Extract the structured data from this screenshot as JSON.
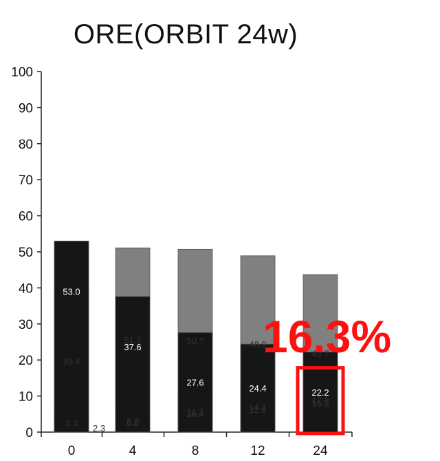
{
  "chart_data": {
    "type": "bar",
    "stacked": true,
    "title": "ORE(ORBIT 24w)",
    "xlabel": "",
    "ylabel": "",
    "ylim": [
      0,
      100
    ],
    "yticks": [
      0,
      10,
      20,
      30,
      40,
      50,
      60,
      70,
      80,
      90,
      100
    ],
    "categories": [
      "0",
      "4",
      "8",
      "12",
      "24"
    ],
    "series": [
      {
        "color": "#ffffff",
        "values": [
          5.3,
          6.0,
          10.4,
          12.6,
          16.3
        ]
      },
      {
        "color": "#cfcfcf",
        "values": [
          2.3,
          5.3,
          11.2,
          14.1,
          17.8
        ]
      },
      {
        "color": "#808080",
        "values": [
          39.4,
          51.1,
          50.7,
          48.9,
          43.7
        ]
      },
      {
        "color": "#161616",
        "values": [
          53.0,
          37.6,
          27.6,
          24.4,
          22.2
        ]
      }
    ],
    "value_labels": [
      [
        "5.3",
        "6.0",
        "10.4",
        "12.6",
        "16.3"
      ],
      [
        "2.3",
        "5.3",
        "11.2",
        "14.1",
        "17.8"
      ],
      [
        "39.4",
        "51.1",
        "50.7",
        "48.9",
        "43.7"
      ],
      [
        "53.0",
        "37.6",
        "27.6",
        "24.4",
        "22.2"
      ]
    ],
    "annotation": {
      "text": "16.3%",
      "color": "#ff1010",
      "highlight_category": "24",
      "highlight_series_index": 0
    }
  }
}
